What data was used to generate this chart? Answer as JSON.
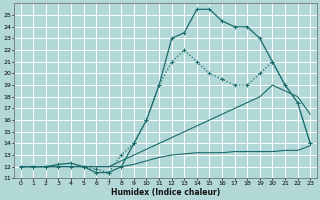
{
  "title": "",
  "xlabel": "Humidex (Indice chaleur)",
  "bg_color": "#b2d8d8",
  "grid_color": "#ffffff",
  "line_color": "#1a6b6b",
  "xlim": [
    -0.5,
    23.5
  ],
  "ylim": [
    11,
    26
  ],
  "xticks": [
    0,
    1,
    2,
    3,
    4,
    5,
    6,
    7,
    8,
    9,
    10,
    11,
    12,
    13,
    14,
    15,
    16,
    17,
    18,
    19,
    20,
    21,
    22,
    23
  ],
  "yticks": [
    11,
    12,
    13,
    14,
    15,
    16,
    17,
    18,
    19,
    20,
    21,
    22,
    23,
    24,
    25
  ],
  "lines": [
    {
      "x": [
        0,
        1,
        2,
        3,
        4,
        5,
        6,
        7,
        8,
        9,
        10,
        11,
        12,
        13,
        14,
        15,
        16,
        17,
        18,
        19,
        20,
        21,
        22,
        23
      ],
      "y": [
        12,
        12,
        12,
        12,
        12,
        12,
        12,
        12,
        12,
        12.2,
        12.5,
        12.8,
        13,
        13.1,
        13.2,
        13.2,
        13.2,
        13.3,
        13.3,
        13.3,
        13.3,
        13.4,
        13.4,
        13.8
      ],
      "marker": null,
      "linestyle": "-",
      "linewidth": 0.8
    },
    {
      "x": [
        0,
        1,
        2,
        3,
        4,
        5,
        6,
        7,
        8,
        9,
        10,
        11,
        12,
        13,
        14,
        15,
        16,
        17,
        18,
        19,
        20,
        21,
        22,
        23
      ],
      "y": [
        12,
        12,
        12,
        12,
        12,
        12,
        12,
        12,
        12.5,
        13,
        13.5,
        14,
        14.5,
        15,
        15.5,
        16,
        16.5,
        17,
        17.5,
        18,
        19,
        18.5,
        18,
        16.5
      ],
      "marker": null,
      "linestyle": "-",
      "linewidth": 0.8
    },
    {
      "x": [
        0,
        1,
        2,
        3,
        4,
        5,
        6,
        7,
        8,
        9,
        10,
        11,
        12,
        13,
        14,
        15,
        16,
        17,
        18,
        19,
        20,
        21,
        22,
        23
      ],
      "y": [
        12,
        12,
        12,
        12,
        12,
        12,
        11.8,
        11.5,
        13,
        14,
        16,
        19,
        21,
        22,
        21,
        20,
        19.5,
        19,
        19,
        20,
        21,
        19,
        17.5,
        14
      ],
      "marker": "+",
      "linestyle": ":",
      "linewidth": 0.9
    },
    {
      "x": [
        0,
        1,
        2,
        3,
        4,
        5,
        6,
        7,
        8,
        9,
        10,
        11,
        12,
        13,
        14,
        15,
        16,
        17,
        18,
        19,
        20,
        21,
        22,
        23
      ],
      "y": [
        12,
        12,
        12,
        12.2,
        12.3,
        12,
        11.5,
        11.5,
        12,
        14,
        16,
        19,
        23,
        23.5,
        25.5,
        25.5,
        24.5,
        24,
        24,
        23,
        21,
        19,
        17.5,
        14
      ],
      "marker": "+",
      "linestyle": "-",
      "linewidth": 0.9
    }
  ]
}
